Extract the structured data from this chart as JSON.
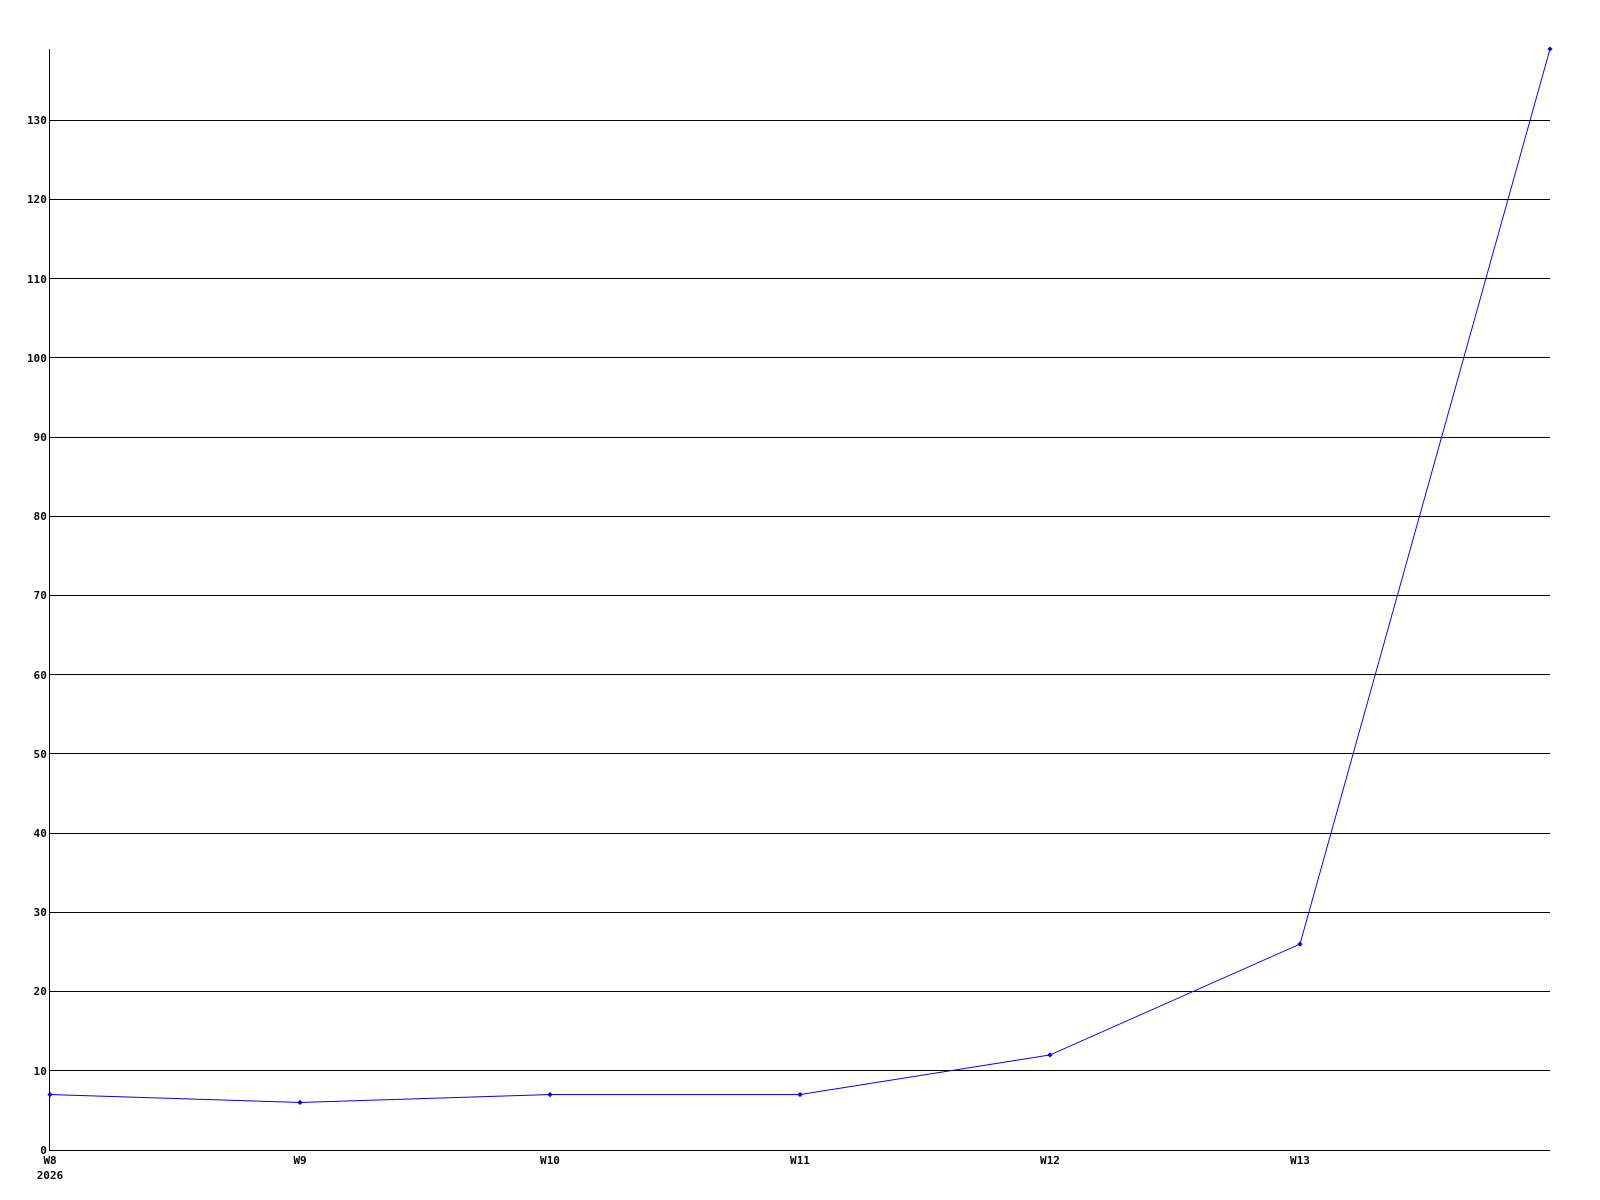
{
  "chart_data": {
    "type": "line",
    "categories": [
      "W8\n2026",
      "W9",
      "W10",
      "W11",
      "W12",
      "W13",
      null
    ],
    "series": [
      {
        "color": "#0000ff",
        "values": [
          7,
          6,
          7,
          7,
          12,
          26,
          139
        ]
      }
    ],
    "ylim": [
      0,
      139
    ],
    "yticks": [
      0,
      10,
      20,
      30,
      40,
      50,
      60,
      70,
      80,
      90,
      100,
      110,
      120,
      130
    ],
    "grid": "y",
    "marker": "diamond",
    "line_style": "solid"
  }
}
